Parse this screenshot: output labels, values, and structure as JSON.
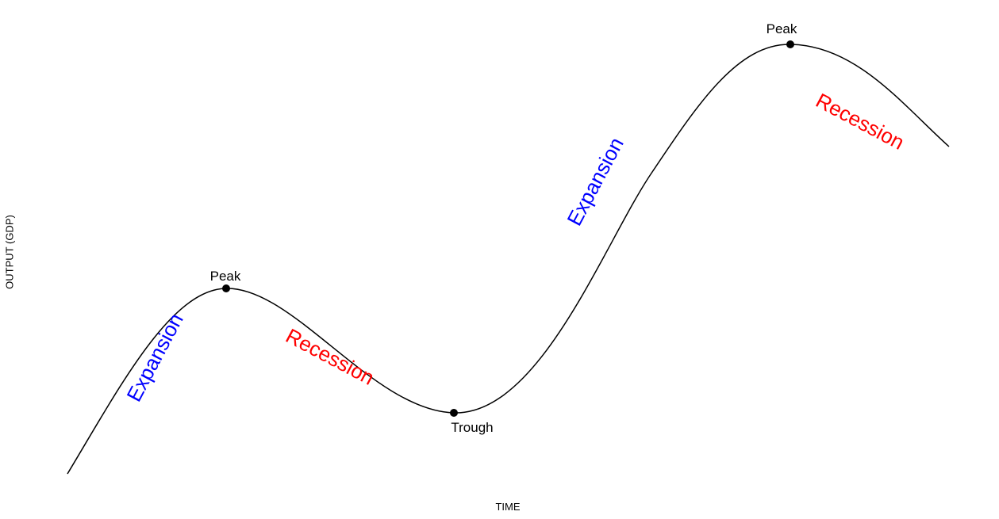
{
  "colors": {
    "curve": "#000000",
    "point": "#000000",
    "expansion": "#0000ff",
    "recession": "#ff0000"
  },
  "axes": {
    "x_label": "TIME",
    "y_label": "OUTPUT (GDP)"
  },
  "points": {
    "peak_1": "Peak",
    "trough": "Trough",
    "peak_2": "Peak"
  },
  "phases": {
    "expansion_1": "Expansion",
    "recession_1": "Recession",
    "expansion_2": "Expansion",
    "recession_2": "Recession"
  }
}
